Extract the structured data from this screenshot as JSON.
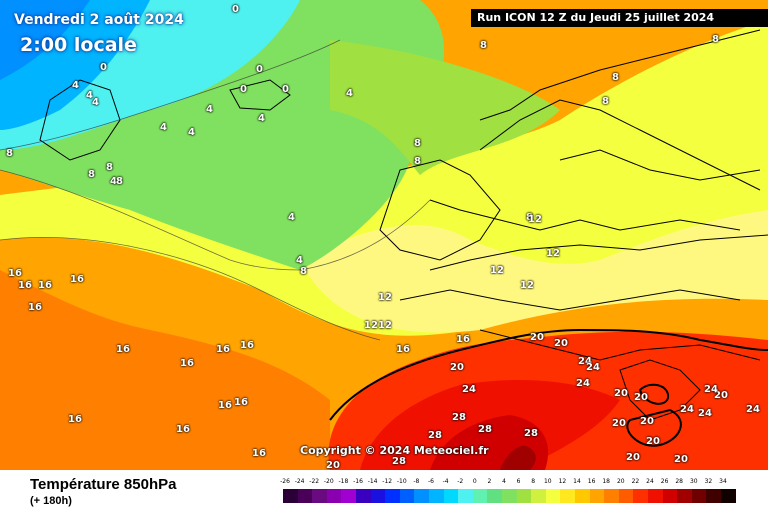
{
  "header": {
    "valid_date": "Vendredi 2 août 2024",
    "local_time": "2:00 locale",
    "run_info": "Run ICON 12 Z du Jeudi 25 juillet 2024"
  },
  "copyright": "Copyright © 2024 Meteociel.fr",
  "footer": {
    "variable": "Température 850hPa",
    "lead_time": "(+ 180h)"
  },
  "legend": {
    "ticks": [
      "-26",
      "-24",
      "-22",
      "-20",
      "-18",
      "-16",
      "-14",
      "-12",
      "-10",
      "-8",
      "-6",
      "-4",
      "-2",
      "0",
      "2",
      "4",
      "6",
      "8",
      "10",
      "12",
      "14",
      "16",
      "18",
      "20",
      "22",
      "24",
      "26",
      "28",
      "30",
      "32",
      "34"
    ],
    "colors": [
      "#2a0036",
      "#4a0058",
      "#6a0a80",
      "#8a00b0",
      "#a000d0",
      "#3a00c0",
      "#1a10e0",
      "#0030ff",
      "#0060ff",
      "#0090ff",
      "#00b4ff",
      "#00d8ff",
      "#4ff0f0",
      "#60f0b0",
      "#60e080",
      "#80e060",
      "#a0e040",
      "#d0f040",
      "#f4ff40",
      "#ffe820",
      "#ffc800",
      "#ffa400",
      "#ff8000",
      "#ff5c00",
      "#ff3000",
      "#f01000",
      "#d00000",
      "#a00000",
      "#700000",
      "#400000",
      "#100000"
    ]
  },
  "labels": [
    {
      "text": "0",
      "name": "isotherm-label-0"
    },
    {
      "text": "0",
      "name": "isotherm-label-0"
    },
    {
      "text": "0",
      "name": "isotherm-label-0"
    },
    {
      "text": "0",
      "name": "isotherm-label-0"
    },
    {
      "text": "0",
      "name": "isotherm-label-0"
    },
    {
      "text": "4",
      "name": "isotherm-label-4"
    },
    {
      "text": "4",
      "name": "isotherm-label-4"
    },
    {
      "text": "4",
      "name": "isotherm-label-4"
    },
    {
      "text": "4",
      "name": "isotherm-label-4"
    },
    {
      "text": "4",
      "name": "isotherm-label-4"
    },
    {
      "text": "4",
      "name": "isotherm-label-4"
    },
    {
      "text": "4",
      "name": "isotherm-label-4"
    },
    {
      "text": "4",
      "name": "isotherm-label-4"
    },
    {
      "text": "4",
      "name": "isotherm-label-4"
    },
    {
      "text": "4",
      "name": "isotherm-label-4"
    },
    {
      "text": "4",
      "name": "isotherm-label-4"
    },
    {
      "text": "8",
      "name": "isotherm-label-8"
    },
    {
      "text": "8",
      "name": "isotherm-label-8"
    },
    {
      "text": "8",
      "name": "isotherm-label-8"
    },
    {
      "text": "8",
      "name": "isotherm-label-8"
    },
    {
      "text": "8",
      "name": "isotherm-label-8"
    },
    {
      "text": "8",
      "name": "isotherm-label-8"
    },
    {
      "text": "8",
      "name": "isotherm-label-8"
    },
    {
      "text": "8",
      "name": "isotherm-label-8"
    },
    {
      "text": "8",
      "name": "isotherm-label-8"
    },
    {
      "text": "8",
      "name": "isotherm-label-8"
    },
    {
      "text": "8",
      "name": "isotherm-label-8"
    },
    {
      "text": "8",
      "name": "isotherm-label-8"
    },
    {
      "text": "12",
      "name": "isotherm-label-12"
    },
    {
      "text": "12",
      "name": "isotherm-label-12"
    },
    {
      "text": "12",
      "name": "isotherm-label-12"
    },
    {
      "text": "12",
      "name": "isotherm-label-12"
    },
    {
      "text": "12",
      "name": "isotherm-label-12"
    },
    {
      "text": "12",
      "name": "isotherm-label-12"
    },
    {
      "text": "12",
      "name": "isotherm-label-12"
    },
    {
      "text": "16",
      "name": "isotherm-label-16"
    },
    {
      "text": "16",
      "name": "isotherm-label-16"
    },
    {
      "text": "16",
      "name": "isotherm-label-16"
    },
    {
      "text": "16",
      "name": "isotherm-label-16"
    },
    {
      "text": "16",
      "name": "isotherm-label-16"
    },
    {
      "text": "16",
      "name": "isotherm-label-16"
    },
    {
      "text": "16",
      "name": "isotherm-label-16"
    },
    {
      "text": "16",
      "name": "isotherm-label-16"
    },
    {
      "text": "16",
      "name": "isotherm-label-16"
    },
    {
      "text": "16",
      "name": "isotherm-label-16"
    },
    {
      "text": "16",
      "name": "isotherm-label-16"
    },
    {
      "text": "16",
      "name": "isotherm-label-16"
    },
    {
      "text": "16",
      "name": "isotherm-label-16"
    },
    {
      "text": "16",
      "name": "isotherm-label-16"
    },
    {
      "text": "16",
      "name": "isotherm-label-16"
    },
    {
      "text": "16",
      "name": "isotherm-label-16"
    },
    {
      "text": "20",
      "name": "isotherm-label-20"
    },
    {
      "text": "20",
      "name": "isotherm-label-20"
    },
    {
      "text": "20",
      "name": "isotherm-label-20"
    },
    {
      "text": "20",
      "name": "isotherm-label-20"
    },
    {
      "text": "20",
      "name": "isotherm-label-20"
    },
    {
      "text": "20",
      "name": "isotherm-label-20"
    },
    {
      "text": "20",
      "name": "isotherm-label-20"
    },
    {
      "text": "20",
      "name": "isotherm-label-20"
    },
    {
      "text": "20",
      "name": "isotherm-label-20"
    },
    {
      "text": "20",
      "name": "isotherm-label-20"
    },
    {
      "text": "20",
      "name": "isotherm-label-20"
    },
    {
      "text": "20",
      "name": "isotherm-label-20"
    },
    {
      "text": "24",
      "name": "isotherm-label-24"
    },
    {
      "text": "24",
      "name": "isotherm-label-24"
    },
    {
      "text": "24",
      "name": "isotherm-label-24"
    },
    {
      "text": "24",
      "name": "isotherm-label-24"
    },
    {
      "text": "24",
      "name": "isotherm-label-24"
    },
    {
      "text": "24",
      "name": "isotherm-label-24"
    },
    {
      "text": "24",
      "name": "isotherm-label-24"
    },
    {
      "text": "24",
      "name": "isotherm-label-24"
    },
    {
      "text": "28",
      "name": "isotherm-label-28"
    },
    {
      "text": "28",
      "name": "isotherm-label-28"
    },
    {
      "text": "28",
      "name": "isotherm-label-28"
    },
    {
      "text": "28",
      "name": "isotherm-label-28"
    },
    {
      "text": "28",
      "name": "isotherm-label-28"
    }
  ]
}
